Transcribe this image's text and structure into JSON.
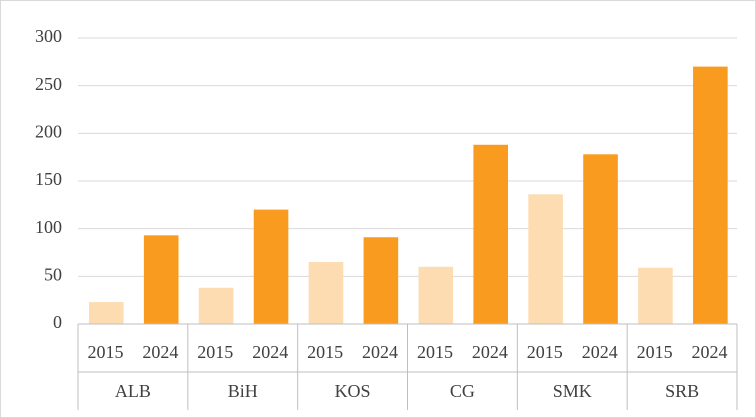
{
  "chart_data": {
    "type": "bar",
    "categories": [
      "ALB",
      "BiH",
      "KOS",
      "CG",
      "SMK",
      "SRB"
    ],
    "series": [
      {
        "name": "2015",
        "color": "#fddcb2",
        "values": [
          23,
          38,
          65,
          60,
          136,
          59
        ]
      },
      {
        "name": "2024",
        "color": "#f89b1e",
        "values": [
          93,
          120,
          91,
          188,
          178,
          270
        ]
      }
    ],
    "ylim": [
      0,
      300
    ],
    "yticks": [
      0,
      50,
      100,
      150,
      200,
      250,
      300
    ],
    "grid": true
  }
}
